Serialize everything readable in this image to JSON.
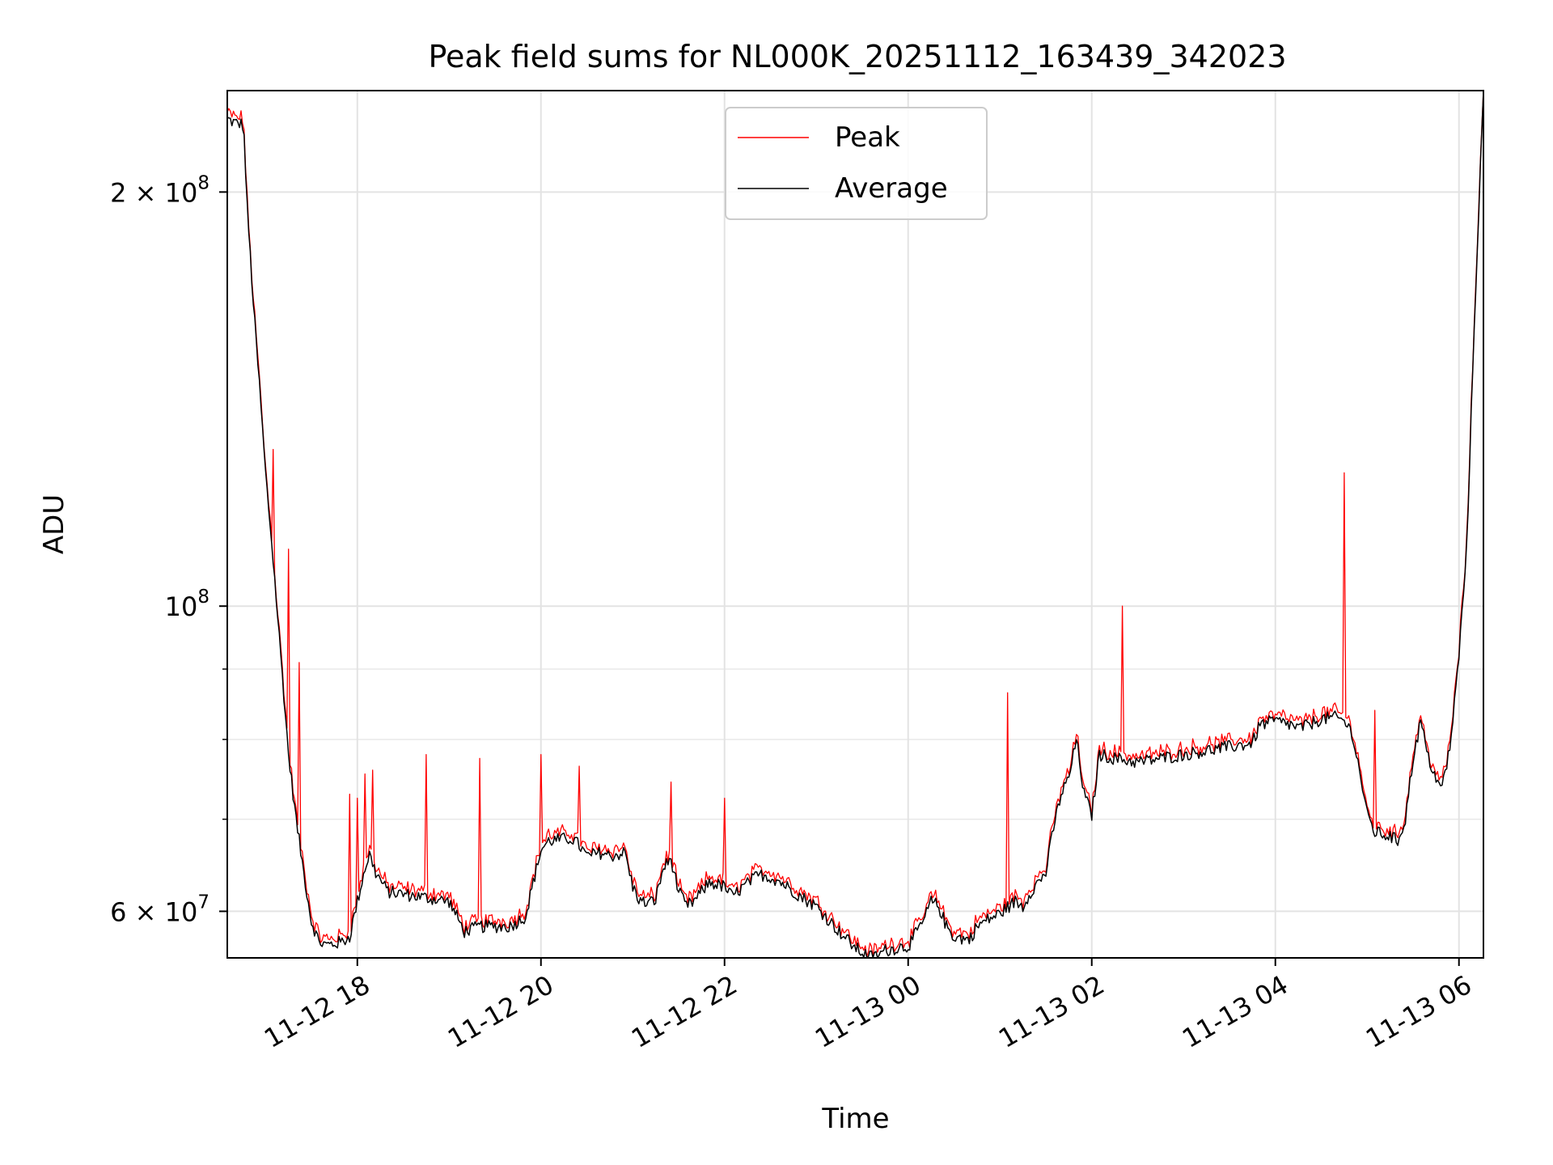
{
  "chart_data": {
    "type": "line",
    "title": "Peak field sums for NL000K_20251112_163439_342023",
    "xlabel": "Time",
    "ylabel": "ADU",
    "yscale": "log",
    "grid": true,
    "legend_position": "top-center",
    "xlim": [
      "2025-11-12 16:35",
      "2025-11-13 06:16"
    ],
    "ylim": [
      55500000,
      237000000
    ],
    "x_ticks": [
      {
        "at": "2025-11-12 18:00",
        "label": "11-12 18"
      },
      {
        "at": "2025-11-12 20:00",
        "label": "11-12 20"
      },
      {
        "at": "2025-11-12 22:00",
        "label": "11-12 22"
      },
      {
        "at": "2025-11-13 00:00",
        "label": "11-13 00"
      },
      {
        "at": "2025-11-13 02:00",
        "label": "11-13 02"
      },
      {
        "at": "2025-11-13 04:00",
        "label": "11-13 04"
      },
      {
        "at": "2025-11-13 06:00",
        "label": "11-13 06"
      }
    ],
    "y_major_ticks": [
      {
        "value": 60000000,
        "base": "6 × 10",
        "exp": "7"
      },
      {
        "value": 100000000,
        "base": "10",
        "exp": "8"
      },
      {
        "value": 200000000,
        "base": "2 × 10",
        "exp": "8"
      }
    ],
    "y_minor_ticks": [
      70000000,
      80000000,
      90000000
    ],
    "series": [
      {
        "name": "Peak",
        "color": "#ff0000"
      },
      {
        "name": "Average",
        "color": "#000000"
      }
    ],
    "average_points": [
      [
        "2025-11-12 16:35",
        226000000
      ],
      [
        "2025-11-12 16:40",
        224500000
      ],
      [
        "2025-11-12 16:45",
        224000000
      ],
      [
        "2025-11-12 16:46",
        219000000
      ],
      [
        "2025-11-12 16:48",
        195000000
      ],
      [
        "2025-11-12 16:52",
        166000000
      ],
      [
        "2025-11-12 16:56",
        145000000
      ],
      [
        "2025-11-12 17:00",
        125000000
      ],
      [
        "2025-11-12 17:05",
        108000000
      ],
      [
        "2025-11-12 17:10",
        92000000
      ],
      [
        "2025-11-12 17:15",
        78000000
      ],
      [
        "2025-11-12 17:20",
        70000000
      ],
      [
        "2025-11-12 17:25",
        64000000
      ],
      [
        "2025-11-12 17:30",
        59000000
      ],
      [
        "2025-11-12 17:35",
        57000000
      ],
      [
        "2025-11-12 17:40",
        56700000
      ],
      [
        "2025-11-12 17:50",
        57000000
      ],
      [
        "2025-11-12 17:55",
        57500000
      ],
      [
        "2025-11-12 18:00",
        61000000
      ],
      [
        "2025-11-12 18:05",
        64500000
      ],
      [
        "2025-11-12 18:08",
        66000000
      ],
      [
        "2025-11-12 18:12",
        64000000
      ],
      [
        "2025-11-12 18:20",
        62000000
      ],
      [
        "2025-11-12 18:40",
        61500000
      ],
      [
        "2025-11-12 19:00",
        61000000
      ],
      [
        "2025-11-12 19:10",
        58000000
      ],
      [
        "2025-11-12 19:20",
        58500000
      ],
      [
        "2025-11-12 19:40",
        58500000
      ],
      [
        "2025-11-12 19:50",
        59500000
      ],
      [
        "2025-11-12 19:55",
        63000000
      ],
      [
        "2025-11-12 20:00",
        66500000
      ],
      [
        "2025-11-12 20:05",
        67500000
      ],
      [
        "2025-11-12 20:20",
        67800000
      ],
      [
        "2025-11-12 20:25",
        67000000
      ],
      [
        "2025-11-12 20:30",
        65800000
      ],
      [
        "2025-11-12 20:40",
        66200000
      ],
      [
        "2025-11-12 20:45",
        65800000
      ],
      [
        "2025-11-12 20:55",
        66200000
      ],
      [
        "2025-11-12 21:00",
        62500000
      ],
      [
        "2025-11-12 21:05",
        61000000
      ],
      [
        "2025-11-12 21:10",
        60800000
      ],
      [
        "2025-11-12 21:15",
        61200000
      ],
      [
        "2025-11-12 21:20",
        64500000
      ],
      [
        "2025-11-12 21:25",
        65500000
      ],
      [
        "2025-11-12 21:30",
        62000000
      ],
      [
        "2025-11-12 21:35",
        60500000
      ],
      [
        "2025-11-12 21:40",
        61000000
      ],
      [
        "2025-11-12 21:50",
        63000000
      ],
      [
        "2025-11-12 22:00",
        62500000
      ],
      [
        "2025-11-12 22:05",
        61500000
      ],
      [
        "2025-11-12 22:10",
        62200000
      ],
      [
        "2025-11-12 22:20",
        63500000
      ],
      [
        "2025-11-12 22:25",
        63800000
      ],
      [
        "2025-11-12 22:35",
        63200000
      ],
      [
        "2025-11-12 22:50",
        61500000
      ],
      [
        "2025-11-12 23:00",
        60500000
      ],
      [
        "2025-11-12 23:15",
        58000000
      ],
      [
        "2025-11-12 23:25",
        56500000
      ],
      [
        "2025-11-12 23:30",
        56000000
      ],
      [
        "2025-11-12 23:35",
        55600000
      ],
      [
        "2025-11-12 23:40",
        55700000
      ],
      [
        "2025-11-12 23:45",
        56200000
      ],
      [
        "2025-11-12 23:55",
        56500000
      ],
      [
        "2025-11-13 00:00",
        56600000
      ],
      [
        "2025-11-13 00:10",
        59000000
      ],
      [
        "2025-11-13 00:15",
        61000000
      ],
      [
        "2025-11-13 00:20",
        60500000
      ],
      [
        "2025-11-13 00:25",
        58500000
      ],
      [
        "2025-11-13 00:30",
        57500000
      ],
      [
        "2025-11-13 00:40",
        57200000
      ],
      [
        "2025-11-13 00:45",
        58500000
      ],
      [
        "2025-11-13 00:50",
        59000000
      ],
      [
        "2025-11-13 01:00",
        59800000
      ],
      [
        "2025-11-13 01:10",
        61000000
      ],
      [
        "2025-11-13 01:15",
        60500000
      ],
      [
        "2025-11-13 01:20",
        62000000
      ],
      [
        "2025-11-13 01:25",
        63000000
      ],
      [
        "2025-11-13 01:30",
        64000000
      ],
      [
        "2025-11-13 01:35",
        69000000
      ],
      [
        "2025-11-13 01:40",
        73000000
      ],
      [
        "2025-11-13 01:45",
        75000000
      ],
      [
        "2025-11-13 01:50",
        80000000
      ],
      [
        "2025-11-13 01:55",
        73000000
      ],
      [
        "2025-11-13 02:00",
        70500000
      ],
      [
        "2025-11-13 02:05",
        78000000
      ],
      [
        "2025-11-13 02:15",
        77500000
      ],
      [
        "2025-11-13 02:30",
        77000000
      ],
      [
        "2025-11-13 02:45",
        77500000
      ],
      [
        "2025-11-13 03:00",
        78000000
      ],
      [
        "2025-11-13 03:15",
        78500000
      ],
      [
        "2025-11-13 03:30",
        79000000
      ],
      [
        "2025-11-13 03:45",
        79500000
      ],
      [
        "2025-11-13 03:50",
        82000000
      ],
      [
        "2025-11-13 04:00",
        82500000
      ],
      [
        "2025-11-13 04:10",
        82000000
      ],
      [
        "2025-11-13 04:15",
        81500000
      ],
      [
        "2025-11-13 04:20",
        81800000
      ],
      [
        "2025-11-13 04:30",
        82800000
      ],
      [
        "2025-11-13 04:40",
        83000000
      ],
      [
        "2025-11-13 04:45",
        82500000
      ],
      [
        "2025-11-13 04:50",
        81000000
      ],
      [
        "2025-11-13 04:55",
        76000000
      ],
      [
        "2025-11-13 05:00",
        70500000
      ],
      [
        "2025-11-13 05:05",
        68500000
      ],
      [
        "2025-11-13 05:15",
        68000000
      ],
      [
        "2025-11-13 05:20",
        67500000
      ],
      [
        "2025-11-13 05:25",
        70000000
      ],
      [
        "2025-11-13 05:30",
        77500000
      ],
      [
        "2025-11-13 05:35",
        82500000
      ],
      [
        "2025-11-13 05:40",
        77500000
      ],
      [
        "2025-11-13 05:45",
        75000000
      ],
      [
        "2025-11-13 05:48",
        73500000
      ],
      [
        "2025-11-13 05:52",
        76500000
      ],
      [
        "2025-11-13 05:55",
        80500000
      ],
      [
        "2025-11-13 06:00",
        92000000
      ],
      [
        "2025-11-13 06:05",
        110000000
      ],
      [
        "2025-11-13 06:10",
        160000000
      ],
      [
        "2025-11-13 06:16",
        237000000
      ]
    ],
    "peak_spikes": [
      [
        "2025-11-12 17:05",
        130000000
      ],
      [
        "2025-11-12 17:15",
        110000000
      ],
      [
        "2025-11-12 17:22",
        91000000
      ],
      [
        "2025-11-12 17:55",
        73000000
      ],
      [
        "2025-11-12 18:00",
        72500000
      ],
      [
        "2025-11-12 18:05",
        75500000
      ],
      [
        "2025-11-12 18:10",
        76000000
      ],
      [
        "2025-11-12 18:45",
        78000000
      ],
      [
        "2025-11-12 19:20",
        77500000
      ],
      [
        "2025-11-12 20:00",
        78000000
      ],
      [
        "2025-11-12 20:25",
        76500000
      ],
      [
        "2025-11-12 21:25",
        74500000
      ],
      [
        "2025-11-12 22:00",
        72500000
      ],
      [
        "2025-11-13 01:05",
        86500000
      ],
      [
        "2025-11-13 02:20",
        100000000
      ],
      [
        "2025-11-13 04:45",
        125000000
      ],
      [
        "2025-11-13 05:05",
        84000000
      ]
    ]
  }
}
